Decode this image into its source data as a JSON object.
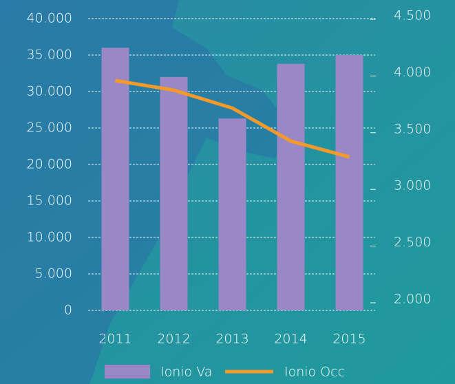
{
  "chart_data": {
    "type": "bar",
    "categories": [
      "2011",
      "2012",
      "2013",
      "2014",
      "2015"
    ],
    "series": [
      {
        "name": "Ionio Va",
        "type": "bar",
        "color": "#9a87c5",
        "values": [
          36000,
          32000,
          26300,
          33800,
          35000
        ]
      },
      {
        "name": "Ionio Occ",
        "type": "line",
        "axis": "y2",
        "color": "#f39a2b",
        "values": [
          3960,
          3875,
          3717,
          3426,
          3286
        ]
      }
    ],
    "ylim": [
      0,
      40000
    ],
    "yticks": [
      0,
      {
        "value": 5000,
        "label": "5.000"
      },
      {
        "value": 10000,
        "label": "10.000"
      },
      {
        "value": 15000,
        "label": "15.000"
      },
      {
        "value": 20000,
        "label": "20.000"
      },
      {
        "value": 25000,
        "label": "25.000"
      },
      {
        "value": 30000,
        "label": "30.000"
      },
      {
        "value": 35000,
        "label": "35.000"
      },
      {
        "value": 40000,
        "label": "40.000"
      }
    ],
    "y2lim": [
      2000,
      4500
    ],
    "y2ticks": [
      {
        "value": 2000,
        "label": "2.000"
      },
      {
        "value": 2500,
        "label": "2.500"
      },
      {
        "value": 3000,
        "label": "3.000"
      },
      {
        "value": 3500,
        "label": "3.500"
      },
      {
        "value": 4000,
        "label": "4.000"
      },
      {
        "value": 4500,
        "label": "4.500"
      }
    ],
    "grid": true,
    "legend": "bottom"
  }
}
